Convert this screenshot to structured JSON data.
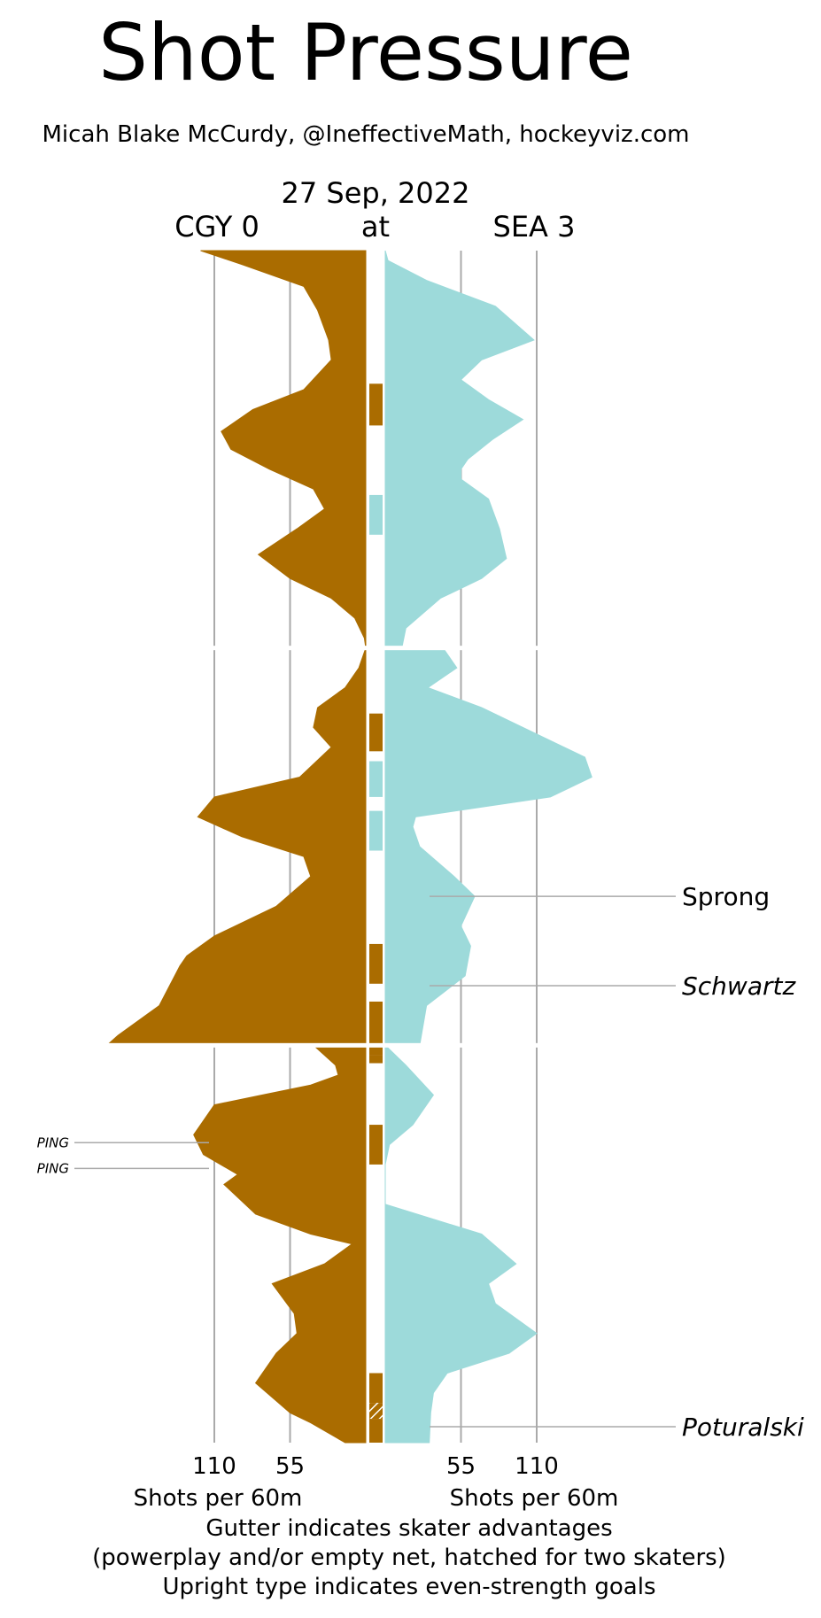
{
  "title": "Shot Pressure",
  "byline": "Micah Blake McCurdy, @IneffectiveMath, hockeyviz.com",
  "game": {
    "date": "27 Sep, 2022",
    "away_label": "CGY 0",
    "at_label": "at",
    "home_label": "SEA 3"
  },
  "colors": {
    "away": "#aa6c00",
    "home": "#9ddada",
    "grid": "#aaaaaa",
    "divider": "#ffffff",
    "annotation_line": "#aaaaaa"
  },
  "axis": {
    "left_ticks": [
      "110",
      "55"
    ],
    "right_ticks": [
      "55",
      "110"
    ],
    "left_label": "Shots per 60m",
    "right_label": "Shots per 60m"
  },
  "footer": [
    "Gutter indicates skater advantages",
    "(powerplay and/or empty net, hatched for two skaters)",
    "Upright type indicates even-strength goals"
  ],
  "chart_data": {
    "type": "area",
    "orientation": "vertical",
    "time_unit": "minutes",
    "periods": 3,
    "period_length": 20,
    "xlim": [
      0,
      160
    ],
    "grid_values": [
      55,
      110
    ],
    "series": [
      {
        "name": "CGY",
        "side": "left",
        "points": [
          [
            0,
            120
          ],
          [
            0.7,
            90
          ],
          [
            1.8,
            45
          ],
          [
            3,
            35
          ],
          [
            4.5,
            27
          ],
          [
            5.5,
            25
          ],
          [
            7,
            45
          ],
          [
            8,
            82
          ],
          [
            9.1,
            105
          ],
          [
            10,
            98
          ],
          [
            11,
            70
          ],
          [
            12,
            38
          ],
          [
            13,
            30
          ],
          [
            14,
            50
          ],
          [
            15.3,
            78
          ],
          [
            16.5,
            55
          ],
          [
            17.5,
            25
          ],
          [
            18.5,
            8
          ],
          [
            19.5,
            1
          ],
          [
            20,
            0
          ],
          [
            20,
            0
          ],
          [
            21,
            5
          ],
          [
            22,
            15
          ],
          [
            23,
            35
          ],
          [
            24,
            38
          ],
          [
            25,
            25
          ],
          [
            26.5,
            48
          ],
          [
            27.5,
            110
          ],
          [
            28.5,
            122
          ],
          [
            29.5,
            90
          ],
          [
            30.5,
            45
          ],
          [
            31.5,
            40
          ],
          [
            33,
            65
          ],
          [
            34.5,
            110
          ],
          [
            35.5,
            130
          ],
          [
            36,
            135
          ],
          [
            38,
            150
          ],
          [
            39.5,
            180
          ],
          [
            40,
            188
          ],
          [
            40,
            38
          ],
          [
            41,
            22
          ],
          [
            41.5,
            20
          ],
          [
            42,
            40
          ],
          [
            42.5,
            75
          ],
          [
            43,
            110
          ],
          [
            44.5,
            125
          ],
          [
            45.5,
            118
          ],
          [
            46.5,
            93
          ],
          [
            47,
            103
          ],
          [
            48.5,
            80
          ],
          [
            49.5,
            40
          ],
          [
            50,
            10
          ],
          [
            51,
            30
          ],
          [
            52,
            68
          ],
          [
            53.5,
            52
          ],
          [
            54.5,
            50
          ],
          [
            55.5,
            65
          ],
          [
            57,
            80
          ],
          [
            58.5,
            55
          ],
          [
            59,
            40
          ],
          [
            60,
            15
          ]
        ]
      },
      {
        "name": "SEA",
        "side": "right",
        "points": [
          [
            0,
            0
          ],
          [
            0.5,
            2
          ],
          [
            1.5,
            30
          ],
          [
            2.8,
            80
          ],
          [
            4.5,
            108
          ],
          [
            5.5,
            70
          ],
          [
            6.5,
            55
          ],
          [
            7.5,
            75
          ],
          [
            8.5,
            100
          ],
          [
            9.5,
            78
          ],
          [
            10.5,
            60
          ],
          [
            11,
            55
          ],
          [
            11.5,
            55
          ],
          [
            12.5,
            75
          ],
          [
            14,
            83
          ],
          [
            15.5,
            88
          ],
          [
            16.5,
            70
          ],
          [
            17.5,
            40
          ],
          [
            19,
            15
          ],
          [
            20,
            12
          ],
          [
            20,
            42
          ],
          [
            21,
            52
          ],
          [
            22,
            31
          ],
          [
            23,
            70
          ],
          [
            24,
            100
          ],
          [
            25.5,
            145
          ],
          [
            26.5,
            150
          ],
          [
            27.5,
            120
          ],
          [
            28.5,
            22
          ],
          [
            29,
            20
          ],
          [
            30,
            25
          ],
          [
            31.5,
            50
          ],
          [
            32.5,
            65
          ],
          [
            34,
            55
          ],
          [
            35,
            62
          ],
          [
            36.5,
            58
          ],
          [
            38,
            30
          ],
          [
            40,
            25
          ],
          [
            40,
            0
          ],
          [
            41,
            15
          ],
          [
            42.5,
            35
          ],
          [
            44,
            20
          ],
          [
            45,
            3
          ],
          [
            46,
            0
          ],
          [
            48,
            0
          ],
          [
            49.5,
            70
          ],
          [
            51,
            95
          ],
          [
            52,
            75
          ],
          [
            53,
            80
          ],
          [
            54.5,
            110
          ],
          [
            55.5,
            90
          ],
          [
            56.5,
            45
          ],
          [
            57.5,
            35
          ],
          [
            58.5,
            33
          ],
          [
            60,
            32
          ]
        ]
      }
    ],
    "gutter": [
      {
        "team": "CGY",
        "start": 6.7,
        "end": 8.8,
        "skaters": 1
      },
      {
        "team": "SEA",
        "start": 12.3,
        "end": 14.3,
        "skaters": 1
      },
      {
        "team": "CGY",
        "start": 23.3,
        "end": 25.2,
        "skaters": 1
      },
      {
        "team": "SEA",
        "start": 25.7,
        "end": 27.5,
        "skaters": 1
      },
      {
        "team": "SEA",
        "start": 28.2,
        "end": 30.2,
        "skaters": 1
      },
      {
        "team": "CGY",
        "start": 34.9,
        "end": 36.9,
        "skaters": 1
      },
      {
        "team": "CGY",
        "start": 37.8,
        "end": 40.5,
        "skaters": 1
      },
      {
        "team": "CGY",
        "start": 40.5,
        "end": 40.9,
        "skaters": 1
      },
      {
        "team": "CGY",
        "start": 44.0,
        "end": 46.0,
        "skaters": 1
      },
      {
        "team": "CGY",
        "start": 56.5,
        "end": 58.0,
        "skaters": 1
      },
      {
        "team": "CGY",
        "start": 58.0,
        "end": 58.8,
        "skaters": 2
      },
      {
        "team": "CGY",
        "start": 58.8,
        "end": 60.0,
        "skaters": 1
      }
    ],
    "events": [
      {
        "side": "right",
        "label": "Sprong",
        "time": 32.5,
        "even_strength": true
      },
      {
        "side": "right",
        "label": "Schwartz",
        "time": 37.0,
        "even_strength": false
      },
      {
        "side": "right",
        "label": "Poturalski",
        "time": 59.2,
        "even_strength": false
      },
      {
        "side": "left",
        "label": "PING",
        "time": 44.9,
        "even_strength": false
      },
      {
        "side": "left",
        "label": "PING",
        "time": 46.2,
        "even_strength": false
      }
    ]
  }
}
